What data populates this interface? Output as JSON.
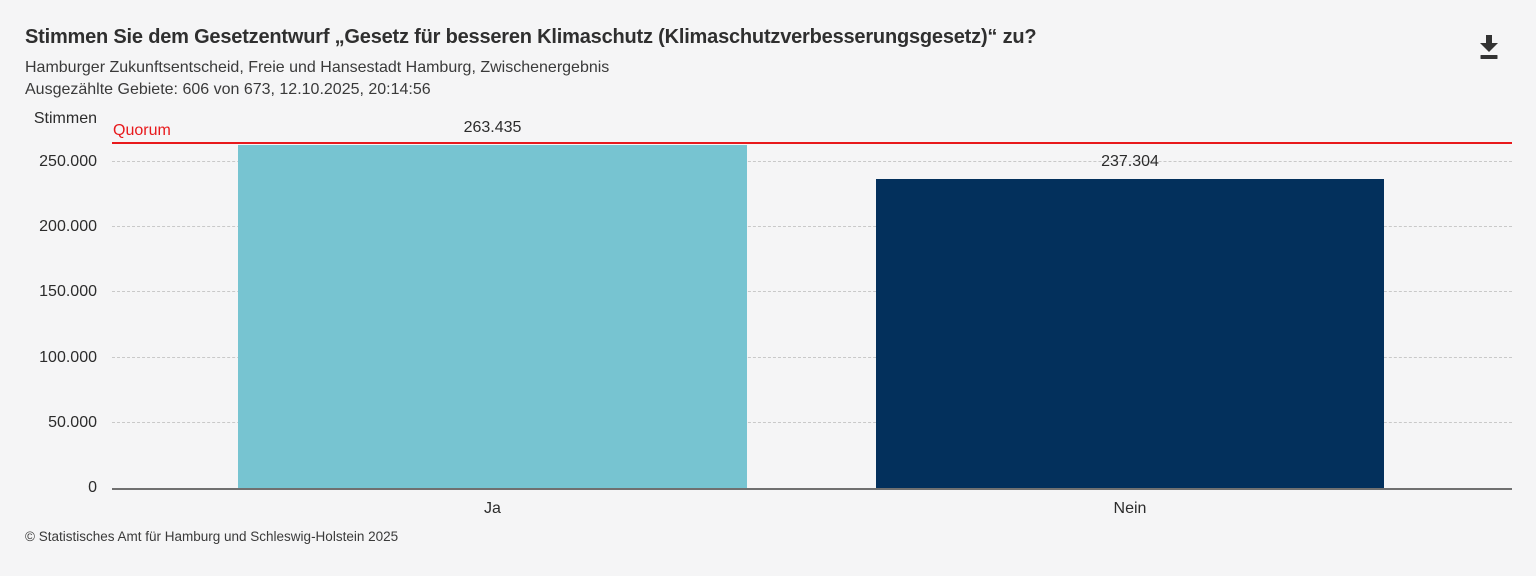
{
  "header": {
    "title": "Stimmen Sie dem Gesetzentwurf „Gesetz für besseren Klimaschutz (Klimaschutzverbesserungsgesetz)“ zu?",
    "subtitle": "Hamburger Zukunftsentscheid, Freie und Hansestadt Hamburg, Zwischenergebnis",
    "status_line": "Ausgezählte Gebiete: 606 von 673, 12.10.2025, 20:14:56",
    "download_icon": "download-icon"
  },
  "chart_data": {
    "type": "bar",
    "ylabel": "Stimmen",
    "categories": [
      "Ja",
      "Nein"
    ],
    "values": [
      263435,
      237304
    ],
    "value_labels": [
      "263.435",
      "237.304"
    ],
    "bar_colors": [
      "#77c4d1",
      "#03305c"
    ],
    "yticks": [
      {
        "value": 0,
        "label": "0"
      },
      {
        "value": 50000,
        "label": "50.000"
      },
      {
        "value": 100000,
        "label": "100.000"
      },
      {
        "value": 150000,
        "label": "150.000"
      },
      {
        "value": 200000,
        "label": "200.000"
      },
      {
        "value": 250000,
        "label": "250.000"
      }
    ],
    "ylim": [
      0,
      280000
    ],
    "grid": {
      "horizontal": true,
      "style": "dashed"
    },
    "legend": null,
    "reference_line": {
      "label": "Quorum",
      "value": 264000,
      "color": "#e8191c"
    }
  },
  "footer": {
    "copyright": "© Statistisches Amt für Hamburg und Schleswig-Holstein 2025"
  },
  "colors": {
    "background": "#f5f5f6",
    "title_text": "#2f2f2f",
    "body_text": "#3a3a3a",
    "axis_line": "#707070",
    "gridline": "#c9c9c9",
    "quorum_red": "#e8191c",
    "bar_ja": "#77c4d1",
    "bar_nein": "#03305c"
  }
}
